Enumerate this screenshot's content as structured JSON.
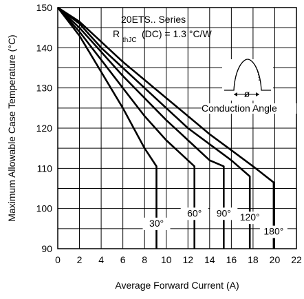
{
  "chart_data": {
    "type": "line",
    "title": "",
    "xlabel": "Average Forward Current (A)",
    "ylabel": "Maximum Allowable Case Temperature (°C)",
    "xlim": [
      0,
      22
    ],
    "ylim": [
      90,
      150
    ],
    "xticks": [
      "0",
      "2",
      "4",
      "6",
      "8",
      "10",
      "12",
      "14",
      "16",
      "18",
      "20",
      "22"
    ],
    "yticks": [
      "90",
      "100",
      "110",
      "120",
      "130",
      "140",
      "150"
    ],
    "grid": true,
    "annotation": {
      "series_text": "20ETS.. Series",
      "r_main": "R",
      "r_sub": "thJC",
      "r_rest": "(DC) = 1.3 °C/W",
      "phi_symbol": "ø",
      "conduction_label": "Conduction Angle"
    },
    "series": [
      {
        "name": "30°",
        "x": [
          0,
          2,
          4,
          6,
          8,
          9.1,
          9.1
        ],
        "y": [
          150,
          143,
          134,
          125,
          115,
          110.5,
          90
        ]
      },
      {
        "name": "60°",
        "x": [
          0,
          2,
          4,
          6,
          8,
          10,
          12.6,
          12.6
        ],
        "y": [
          150,
          144,
          137,
          130,
          123,
          117,
          110.5,
          90
        ]
      },
      {
        "name": "90°",
        "x": [
          0,
          2,
          4,
          6,
          8,
          10,
          12,
          14,
          15.3,
          15.3
        ],
        "y": [
          150,
          145,
          139,
          133,
          127.5,
          122,
          117,
          112,
          110.5,
          90
        ]
      },
      {
        "name": "120°",
        "x": [
          0,
          2,
          4,
          6,
          8,
          10,
          12,
          14,
          16,
          17.7,
          17.7
        ],
        "y": [
          150,
          146,
          140,
          135,
          130,
          125,
          120,
          116,
          112,
          108,
          90
        ]
      },
      {
        "name": "180°",
        "x": [
          0,
          2,
          4,
          6,
          8,
          10,
          12,
          14,
          16,
          18,
          19.9,
          19.9
        ],
        "y": [
          150,
          146.5,
          141.5,
          136.5,
          132,
          127.5,
          123,
          118.5,
          114.5,
          110.5,
          106.5,
          90
        ]
      }
    ]
  }
}
